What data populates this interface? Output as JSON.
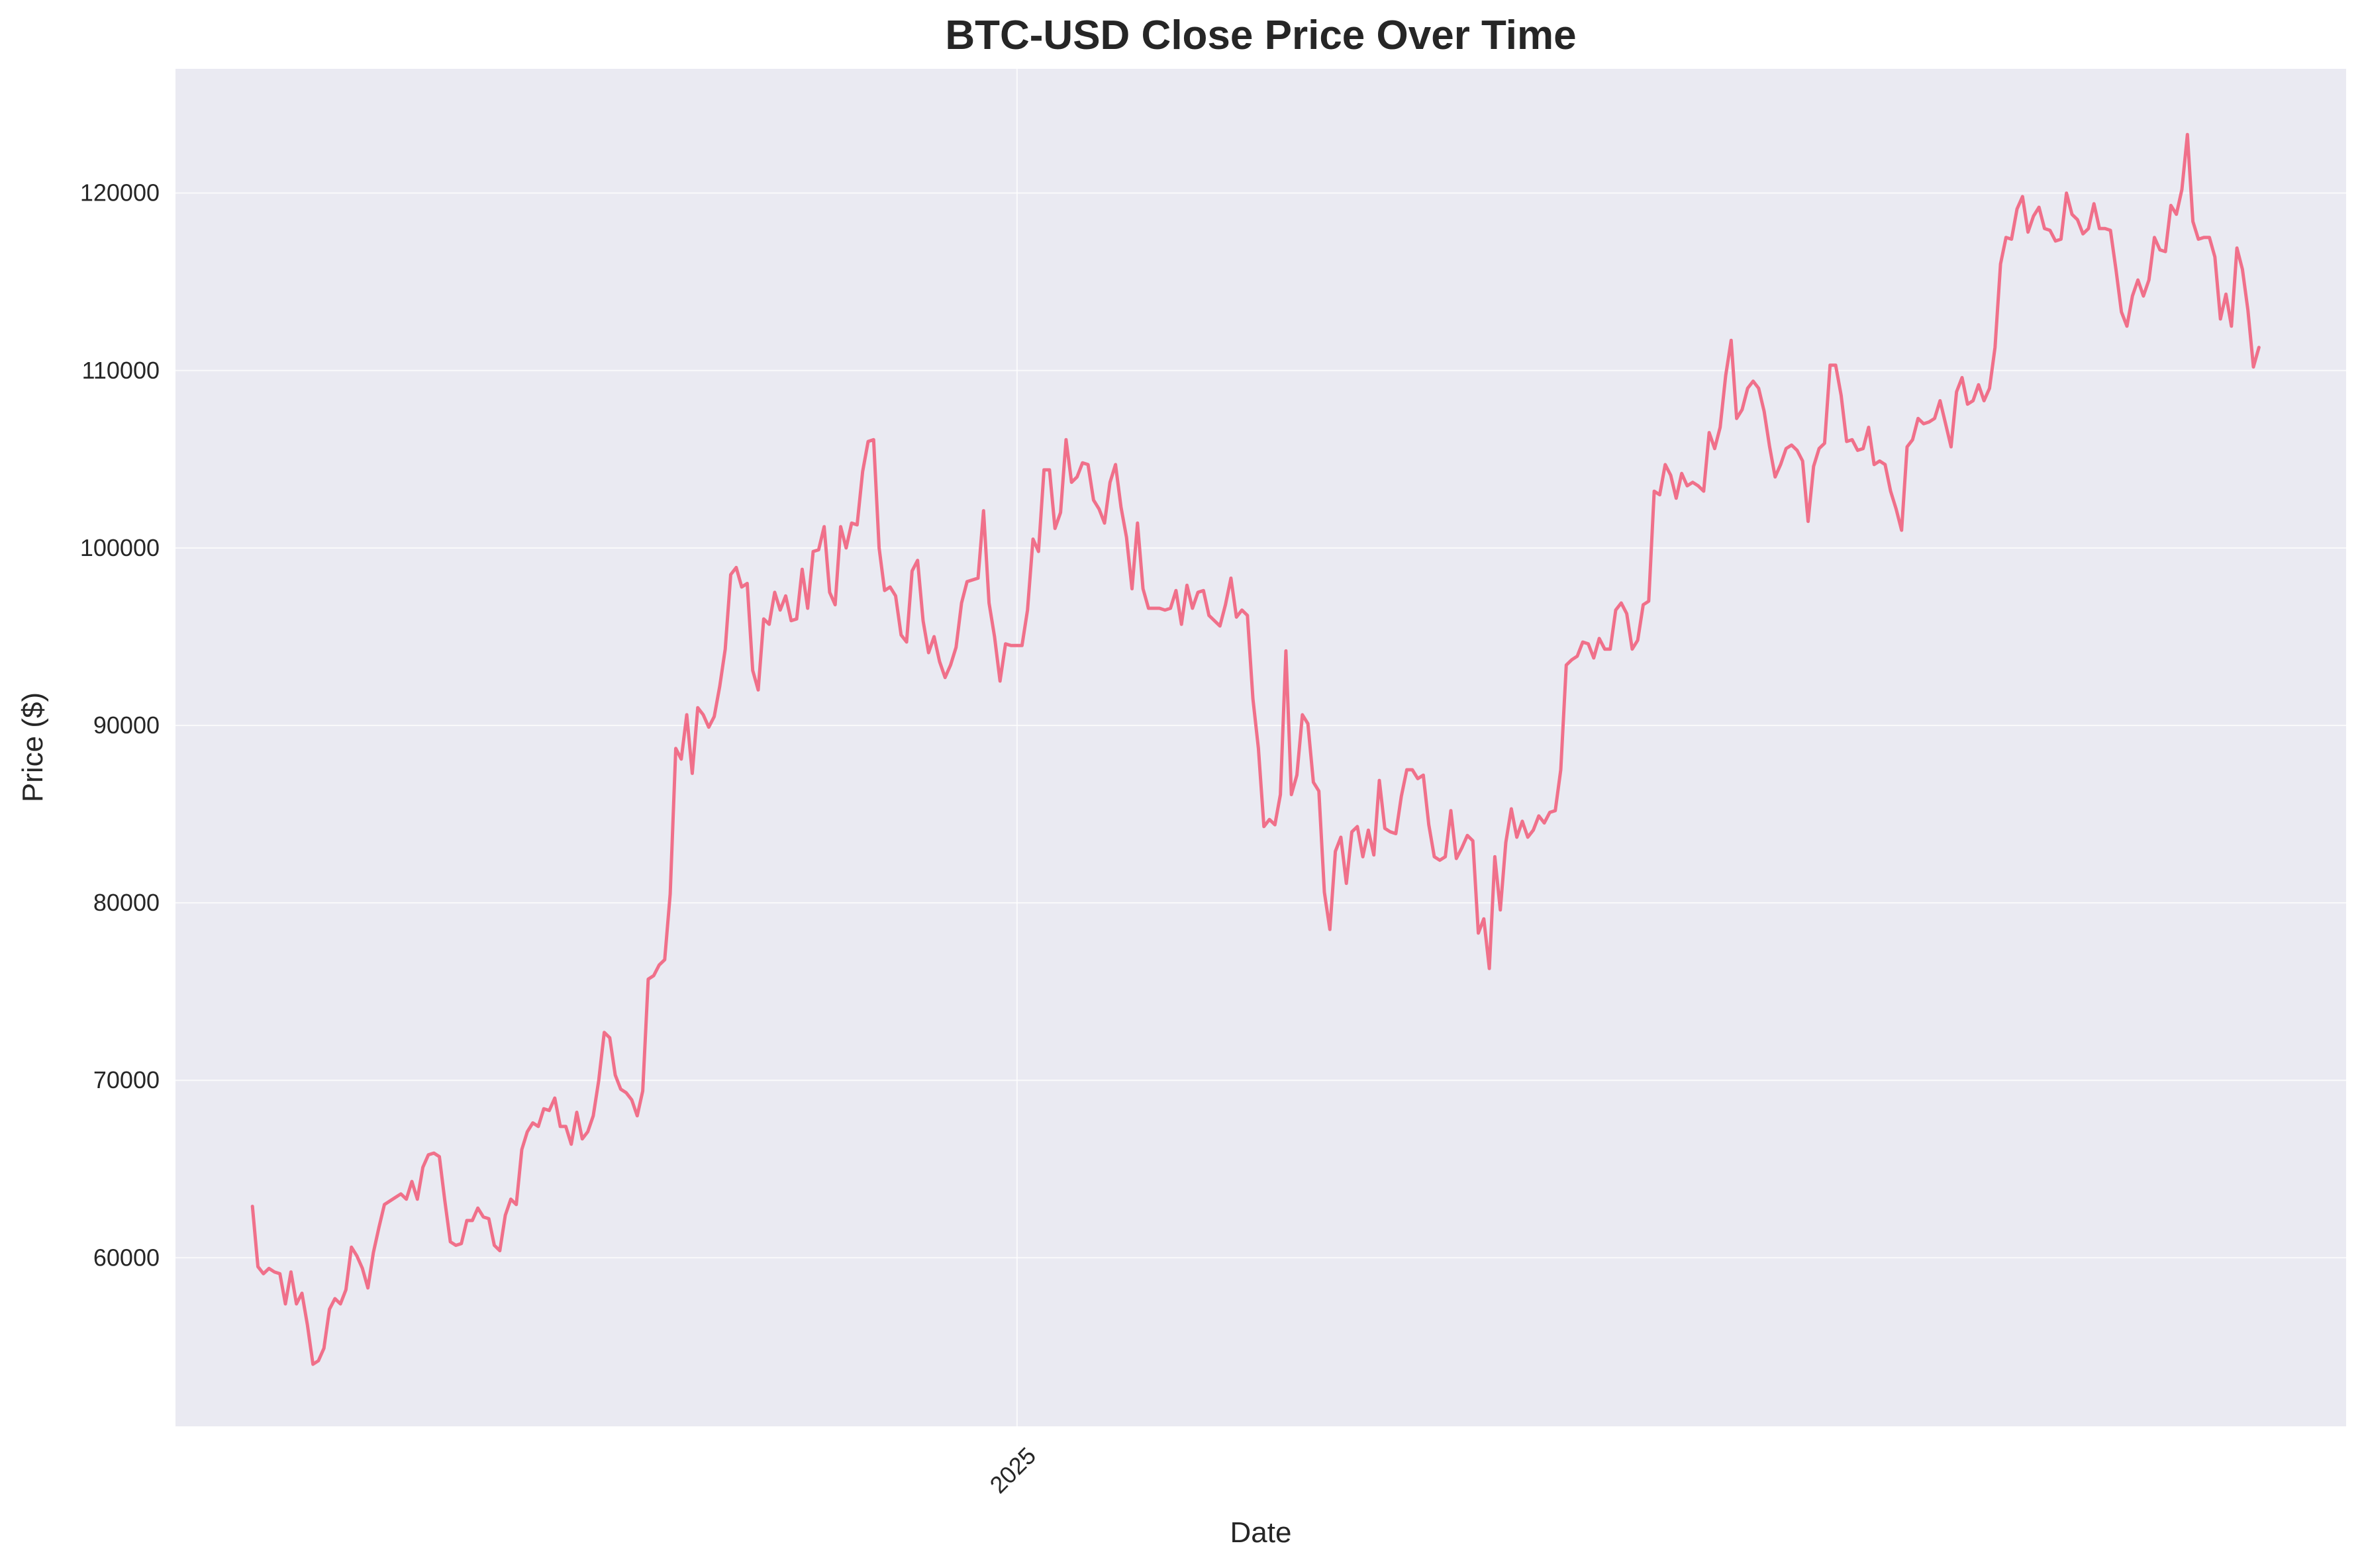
{
  "chart_data": {
    "type": "line",
    "title": "BTC-USD Close Price Over Time",
    "xlabel": "Date",
    "ylabel": "Price ($)",
    "grid": true,
    "x_domain": [
      "2024-08-05",
      "2025-08-31"
    ],
    "xlim": [
      "2024-07-21",
      "2025-09-17"
    ],
    "ylim": [
      50500,
      127000
    ],
    "yticks": [
      60000,
      70000,
      80000,
      90000,
      100000,
      110000,
      120000
    ],
    "ytick_labels": [
      "60000",
      "70000",
      "80000",
      "90000",
      "100000",
      "110000",
      "120000"
    ],
    "xticks": [
      {
        "date": "2025-01-01",
        "label": "2025"
      }
    ],
    "line_color": "#f0708a",
    "plot_bg": "#eaeaf2",
    "series": [
      {
        "values": [
          62900,
          59500,
          59100,
          59400,
          59200,
          59100,
          57400,
          59200,
          57400,
          58000,
          56200,
          54000,
          54200,
          54900,
          57100,
          57700,
          57400,
          58200,
          60600,
          60100,
          59400,
          58300,
          60300,
          61700,
          63000,
          63200,
          63400,
          63600,
          63300,
          64300,
          63300,
          65100,
          65800,
          65900,
          65700,
          63200,
          60900,
          60700,
          60800,
          62100,
          62100,
          62800,
          62300,
          62200,
          60700,
          60400,
          62400,
          63300,
          63000,
          66100,
          67100,
          67600,
          67400,
          68400,
          68300,
          69000,
          67400,
          67400,
          66400,
          68200,
          66700,
          67100,
          68000,
          70000,
          72700,
          72400,
          70300,
          69500,
          69300,
          68900,
          68000,
          69400,
          75700,
          75900,
          76500,
          76800,
          80500,
          88700,
          88100,
          90600,
          87300,
          91000,
          90600,
          89900,
          90500,
          92200,
          94300,
          98500,
          98900,
          97800,
          98000,
          93100,
          92000,
          96000,
          95700,
          97500,
          96500,
          97300,
          95900,
          96000,
          98800,
          96600,
          99800,
          99900,
          101200,
          97500,
          96800,
          101200,
          100000,
          101400,
          101300,
          104300,
          106000,
          106100,
          100000,
          97600,
          97800,
          97300,
          95100,
          94700,
          98700,
          99300,
          95900,
          94100,
          95000,
          93600,
          92700,
          93400,
          94400,
          96900,
          98100,
          98200,
          98300,
          102100,
          96900,
          95000,
          92500,
          94600,
          94500,
          94500,
          94500,
          96500,
          100500,
          99800,
          104400,
          104400,
          101100,
          102000,
          106100,
          103700,
          104000,
          104800,
          104700,
          102700,
          102200,
          101400,
          103700,
          104700,
          102300,
          100600,
          97700,
          101400,
          97700,
          96600,
          96600,
          96600,
          96500,
          96600,
          97600,
          95700,
          97900,
          96600,
          97500,
          97600,
          96200,
          95900,
          95600,
          96800,
          98300,
          96100,
          96500,
          96200,
          91500,
          88700,
          84300,
          84700,
          84400,
          86100,
          94200,
          86100,
          87200,
          90600,
          90100,
          86800,
          86300,
          80600,
          78500,
          82900,
          83700,
          81100,
          84000,
          84300,
          82600,
          84100,
          82700,
          86900,
          84200,
          84000,
          83900,
          86000,
          87500,
          87500,
          87000,
          87200,
          84400,
          82600,
          82400,
          82600,
          85200,
          82500,
          83100,
          83800,
          83500,
          78300,
          79100,
          76300,
          82600,
          79600,
          83400,
          85300,
          83700,
          84600,
          83700,
          84100,
          84900,
          84500,
          85100,
          85200,
          87500,
          93400,
          93700,
          93900,
          94700,
          94600,
          93800,
          94900,
          94300,
          94300,
          96500,
          96900,
          96300,
          94300,
          94800,
          96800,
          97000,
          103200,
          103000,
          104700,
          104100,
          102800,
          104200,
          103500,
          103700,
          103500,
          103200,
          106500,
          105600,
          106800,
          109700,
          111700,
          107300,
          107800,
          109000,
          109400,
          109000,
          107700,
          105700,
          104000,
          104700,
          105600,
          105800,
          105500,
          104900,
          101500,
          104600,
          105600,
          105900,
          110300,
          110300,
          108600,
          106000,
          106100,
          105500,
          105600,
          106800,
          104700,
          104900,
          104700,
          103200,
          102200,
          101000,
          105700,
          106100,
          107300,
          107000,
          107100,
          107300,
          108300,
          107000,
          105700,
          108800,
          109600,
          108100,
          108300,
          109200,
          108300,
          109000,
          111300,
          116000,
          117500,
          117400,
          119100,
          119800,
          117800,
          118700,
          119200,
          118000,
          117900,
          117300,
          117400,
          120000,
          118800,
          118500,
          117700,
          118000,
          119400,
          118000,
          118000,
          117900,
          115700,
          113300,
          112500,
          114200,
          115100,
          114200,
          115100,
          117500,
          116800,
          116700,
          119300,
          118800,
          120200,
          123300,
          118400,
          117400,
          117500,
          117500,
          116400,
          112900,
          114300,
          112500,
          116900,
          115700,
          113400,
          110200,
          111300
        ]
      }
    ]
  }
}
